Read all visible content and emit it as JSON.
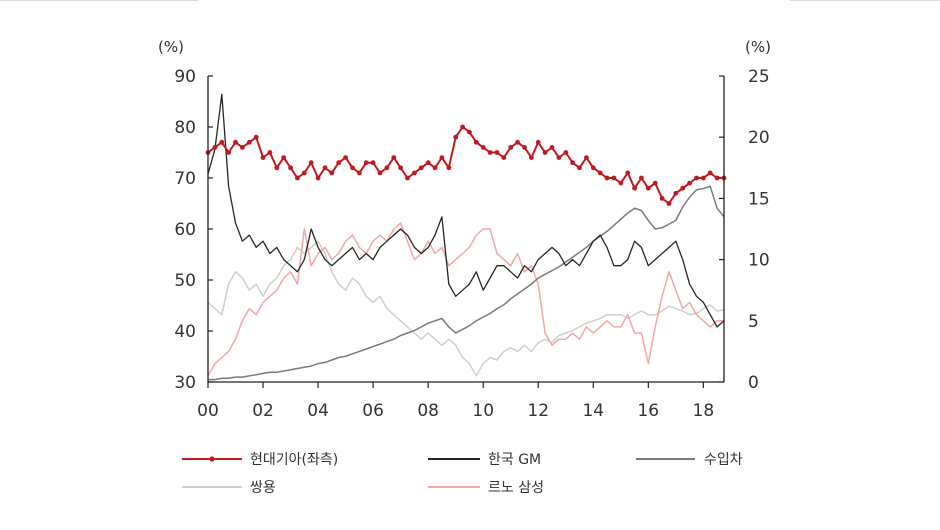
{
  "chart_data": {
    "type": "line",
    "title": "",
    "left_axis": {
      "unit_label": "(%)",
      "ylim": [
        30,
        90
      ],
      "ticks": [
        "90",
        "80",
        "70",
        "60",
        "50",
        "40",
        "30"
      ]
    },
    "right_axis": {
      "unit_label": "(%)",
      "ylim": [
        0,
        25
      ],
      "ticks": [
        "25",
        "20",
        "15",
        "10",
        "5",
        "0"
      ]
    },
    "x_axis": {
      "xlim": [
        2000,
        2018.75
      ],
      "ticks": [
        "00",
        "02",
        "04",
        "06",
        "08",
        "10",
        "12",
        "14",
        "16",
        "18"
      ]
    },
    "legend_placement": "bottom",
    "series": [
      {
        "name": "현대기아(좌측)",
        "axis": "left",
        "color": "#c0191f",
        "width": 2,
        "markers": true,
        "x": [
          2000.0,
          2000.25,
          2000.5,
          2000.75,
          2001.0,
          2001.25,
          2001.5,
          2001.75,
          2002.0,
          2002.25,
          2002.5,
          2002.75,
          2003.0,
          2003.25,
          2003.5,
          2003.75,
          2004.0,
          2004.25,
          2004.5,
          2004.75,
          2005.0,
          2005.25,
          2005.5,
          2005.75,
          2006.0,
          2006.25,
          2006.5,
          2006.75,
          2007.0,
          2007.25,
          2007.5,
          2007.75,
          2008.0,
          2008.25,
          2008.5,
          2008.75,
          2009.0,
          2009.25,
          2009.5,
          2009.75,
          2010.0,
          2010.25,
          2010.5,
          2010.75,
          2011.0,
          2011.25,
          2011.5,
          2011.75,
          2012.0,
          2012.25,
          2012.5,
          2012.75,
          2013.0,
          2013.25,
          2013.5,
          2013.75,
          2014.0,
          2014.25,
          2014.5,
          2014.75,
          2015.0,
          2015.25,
          2015.5,
          2015.75,
          2016.0,
          2016.25,
          2016.5,
          2016.75,
          2017.0,
          2017.25,
          2017.5,
          2017.75,
          2018.0,
          2018.25,
          2018.5,
          2018.75
        ],
        "values": [
          75,
          76,
          77,
          75,
          77,
          76,
          77,
          78,
          74,
          75,
          72,
          74,
          72,
          70,
          71,
          73,
          70,
          72,
          71,
          73,
          74,
          72,
          71,
          73,
          73,
          71,
          72,
          74,
          72,
          70,
          71,
          72,
          73,
          72,
          74,
          72,
          78,
          80,
          79,
          77,
          76,
          75,
          75,
          74,
          76,
          77,
          76,
          74,
          77,
          75,
          76,
          74,
          75,
          73,
          72,
          74,
          72,
          71,
          70,
          70,
          69,
          71,
          68,
          70,
          68,
          69,
          66,
          65,
          67,
          68,
          69,
          70,
          70,
          71,
          70,
          70
        ]
      },
      {
        "name": "한국 GM",
        "axis": "right",
        "color": "#262626",
        "width": 1.3,
        "markers": false,
        "x": [
          2000.0,
          2000.25,
          2000.5,
          2000.75,
          2001.0,
          2001.25,
          2001.5,
          2001.75,
          2002.0,
          2002.25,
          2002.5,
          2002.75,
          2003.0,
          2003.25,
          2003.5,
          2003.75,
          2004.0,
          2004.25,
          2004.5,
          2004.75,
          2005.0,
          2005.25,
          2005.5,
          2005.75,
          2006.0,
          2006.25,
          2006.5,
          2006.75,
          2007.0,
          2007.25,
          2007.5,
          2007.75,
          2008.0,
          2008.25,
          2008.5,
          2008.75,
          2009.0,
          2009.25,
          2009.5,
          2009.75,
          2010.0,
          2010.25,
          2010.5,
          2010.75,
          2011.0,
          2011.25,
          2011.5,
          2011.75,
          2012.0,
          2012.25,
          2012.5,
          2012.75,
          2013.0,
          2013.25,
          2013.5,
          2013.75,
          2014.0,
          2014.25,
          2014.5,
          2014.75,
          2015.0,
          2015.25,
          2015.5,
          2015.75,
          2016.0,
          2016.25,
          2016.5,
          2016.75,
          2017.0,
          2017.25,
          2017.5,
          2017.75,
          2018.0,
          2018.25,
          2018.5,
          2018.75
        ],
        "values": [
          17,
          19,
          23.5,
          16,
          13,
          11.5,
          12,
          11,
          11.5,
          10.5,
          11,
          10,
          9.5,
          9,
          10,
          12.5,
          11,
          10,
          9.5,
          10,
          10.5,
          11,
          10,
          10.5,
          10,
          11,
          11.5,
          12,
          12.5,
          12,
          11,
          10.5,
          11,
          12,
          13.5,
          8,
          7,
          7.5,
          8,
          9,
          7.5,
          8.5,
          9.5,
          9.5,
          9,
          8.5,
          9.5,
          9,
          10,
          10.5,
          11,
          10.5,
          9.5,
          10,
          9.5,
          10.5,
          11.5,
          12,
          11,
          9.5,
          9.5,
          10,
          11.5,
          11,
          9.5,
          10,
          10.5,
          11,
          11.5,
          10,
          8,
          7,
          6.5,
          5.5,
          4.5,
          5
        ]
      },
      {
        "name": "수입차",
        "axis": "right",
        "color": "#7a7a7a",
        "width": 1.5,
        "markers": false,
        "x": [
          2000.0,
          2000.25,
          2000.5,
          2000.75,
          2001.0,
          2001.25,
          2001.5,
          2001.75,
          2002.0,
          2002.25,
          2002.5,
          2002.75,
          2003.0,
          2003.25,
          2003.5,
          2003.75,
          2004.0,
          2004.25,
          2004.5,
          2004.75,
          2005.0,
          2005.25,
          2005.5,
          2005.75,
          2006.0,
          2006.25,
          2006.5,
          2006.75,
          2007.0,
          2007.25,
          2007.5,
          2007.75,
          2008.0,
          2008.25,
          2008.5,
          2008.75,
          2009.0,
          2009.25,
          2009.5,
          2009.75,
          2010.0,
          2010.25,
          2010.5,
          2010.75,
          2011.0,
          2011.25,
          2011.5,
          2011.75,
          2012.0,
          2012.25,
          2012.5,
          2012.75,
          2013.0,
          2013.25,
          2013.5,
          2013.75,
          2014.0,
          2014.25,
          2014.5,
          2014.75,
          2015.0,
          2015.25,
          2015.5,
          2015.75,
          2016.0,
          2016.25,
          2016.5,
          2016.75,
          2017.0,
          2017.25,
          2017.5,
          2017.75,
          2018.0,
          2018.25,
          2018.5,
          2018.75
        ],
        "values": [
          0.2,
          0.2,
          0.3,
          0.3,
          0.4,
          0.4,
          0.5,
          0.6,
          0.7,
          0.8,
          0.8,
          0.9,
          1.0,
          1.1,
          1.2,
          1.3,
          1.5,
          1.6,
          1.8,
          2.0,
          2.1,
          2.3,
          2.5,
          2.7,
          2.9,
          3.1,
          3.3,
          3.5,
          3.8,
          4.0,
          4.2,
          4.5,
          4.8,
          5.0,
          5.2,
          4.5,
          4.0,
          4.3,
          4.6,
          5.0,
          5.3,
          5.6,
          6.0,
          6.3,
          6.8,
          7.2,
          7.6,
          8.0,
          8.5,
          8.8,
          9.1,
          9.4,
          9.8,
          10.2,
          10.6,
          11.0,
          11.5,
          11.9,
          12.3,
          12.8,
          13.3,
          13.8,
          14.2,
          14.0,
          13.2,
          12.5,
          12.6,
          12.9,
          13.2,
          14.3,
          15.1,
          15.7,
          15.8,
          16.0,
          14.2,
          13.5
        ]
      },
      {
        "name": "쌍용",
        "axis": "right",
        "color": "#cfcfcf",
        "width": 1.5,
        "markers": false,
        "x": [
          2000.0,
          2000.25,
          2000.5,
          2000.75,
          2001.0,
          2001.25,
          2001.5,
          2001.75,
          2002.0,
          2002.25,
          2002.5,
          2002.75,
          2003.0,
          2003.25,
          2003.5,
          2003.75,
          2004.0,
          2004.25,
          2004.5,
          2004.75,
          2005.0,
          2005.25,
          2005.5,
          2005.75,
          2006.0,
          2006.25,
          2006.5,
          2006.75,
          2007.0,
          2007.25,
          2007.5,
          2007.75,
          2008.0,
          2008.25,
          2008.5,
          2008.75,
          2009.0,
          2009.25,
          2009.5,
          2009.75,
          2010.0,
          2010.25,
          2010.5,
          2010.75,
          2011.0,
          2011.25,
          2011.5,
          2011.75,
          2012.0,
          2012.25,
          2012.5,
          2012.75,
          2013.0,
          2013.25,
          2013.5,
          2013.75,
          2014.0,
          2014.25,
          2014.5,
          2014.75,
          2015.0,
          2015.25,
          2015.5,
          2015.75,
          2016.0,
          2016.25,
          2016.5,
          2016.75,
          2017.0,
          2017.25,
          2017.5,
          2017.75,
          2018.0,
          2018.25,
          2018.5,
          2018.75
        ],
        "values": [
          6.5,
          6.0,
          5.5,
          8.0,
          9.0,
          8.5,
          7.5,
          8.0,
          7.0,
          8.0,
          8.5,
          9.5,
          10.0,
          11.0,
          10.5,
          11.0,
          11.5,
          10.5,
          9.0,
          8.0,
          7.5,
          8.5,
          8.0,
          7.0,
          6.5,
          7.0,
          6.0,
          5.5,
          5.0,
          4.5,
          4.0,
          3.5,
          4.0,
          3.5,
          3.0,
          3.5,
          3.0,
          2.0,
          1.5,
          0.5,
          1.5,
          2.0,
          1.8,
          2.5,
          2.8,
          2.5,
          3.0,
          2.5,
          3.2,
          3.5,
          3.2,
          3.8,
          4.0,
          4.2,
          4.5,
          4.8,
          5.0,
          5.2,
          5.5,
          5.5,
          5.5,
          5.2,
          5.5,
          5.8,
          5.5,
          5.5,
          5.8,
          6.2,
          6.0,
          5.8,
          5.5,
          5.6,
          6.0,
          6.3,
          5.8,
          5.9
        ]
      },
      {
        "name": "르노 삼성",
        "axis": "right",
        "color": "#f4a6a8",
        "width": 1.5,
        "markers": false,
        "x": [
          2000.0,
          2000.25,
          2000.5,
          2000.75,
          2001.0,
          2001.25,
          2001.5,
          2001.75,
          2002.0,
          2002.25,
          2002.5,
          2002.75,
          2003.0,
          2003.25,
          2003.5,
          2003.75,
          2004.0,
          2004.25,
          2004.5,
          2004.75,
          2005.0,
          2005.25,
          2005.5,
          2005.75,
          2006.0,
          2006.25,
          2006.5,
          2006.75,
          2007.0,
          2007.25,
          2007.5,
          2007.75,
          2008.0,
          2008.25,
          2008.5,
          2008.75,
          2009.0,
          2009.25,
          2009.5,
          2009.75,
          2010.0,
          2010.25,
          2010.5,
          2010.75,
          2011.0,
          2011.25,
          2011.5,
          2011.75,
          2012.0,
          2012.25,
          2012.5,
          2012.75,
          2013.0,
          2013.25,
          2013.5,
          2013.75,
          2014.0,
          2014.25,
          2014.5,
          2014.75,
          2015.0,
          2015.25,
          2015.5,
          2015.75,
          2016.0,
          2016.25,
          2016.5,
          2016.75,
          2017.0,
          2017.25,
          2017.5,
          2017.75,
          2018.0,
          2018.25,
          2018.5,
          2018.75
        ],
        "values": [
          0.5,
          1.5,
          2.0,
          2.5,
          3.5,
          5.0,
          6.0,
          5.5,
          6.5,
          7.0,
          7.5,
          8.5,
          9.0,
          8.0,
          12.5,
          9.5,
          10.5,
          11.0,
          10.0,
          10.5,
          11.5,
          12.0,
          11.0,
          10.5,
          11.5,
          12.0,
          11.5,
          12.5,
          13.0,
          11.5,
          10.0,
          10.5,
          11.5,
          10.5,
          11.0,
          9.5,
          10.0,
          10.5,
          11.0,
          12.0,
          12.5,
          12.5,
          10.5,
          10.0,
          9.5,
          10.5,
          9.0,
          9.5,
          8.0,
          4.0,
          3.0,
          3.5,
          3.5,
          4.0,
          3.5,
          4.5,
          4.0,
          4.5,
          5.0,
          4.5,
          4.5,
          5.5,
          4.0,
          4.0,
          1.5,
          4.5,
          7.0,
          9.0,
          7.5,
          6.0,
          6.5,
          5.5,
          5.0,
          4.5,
          5.0,
          5.0
        ]
      }
    ]
  }
}
